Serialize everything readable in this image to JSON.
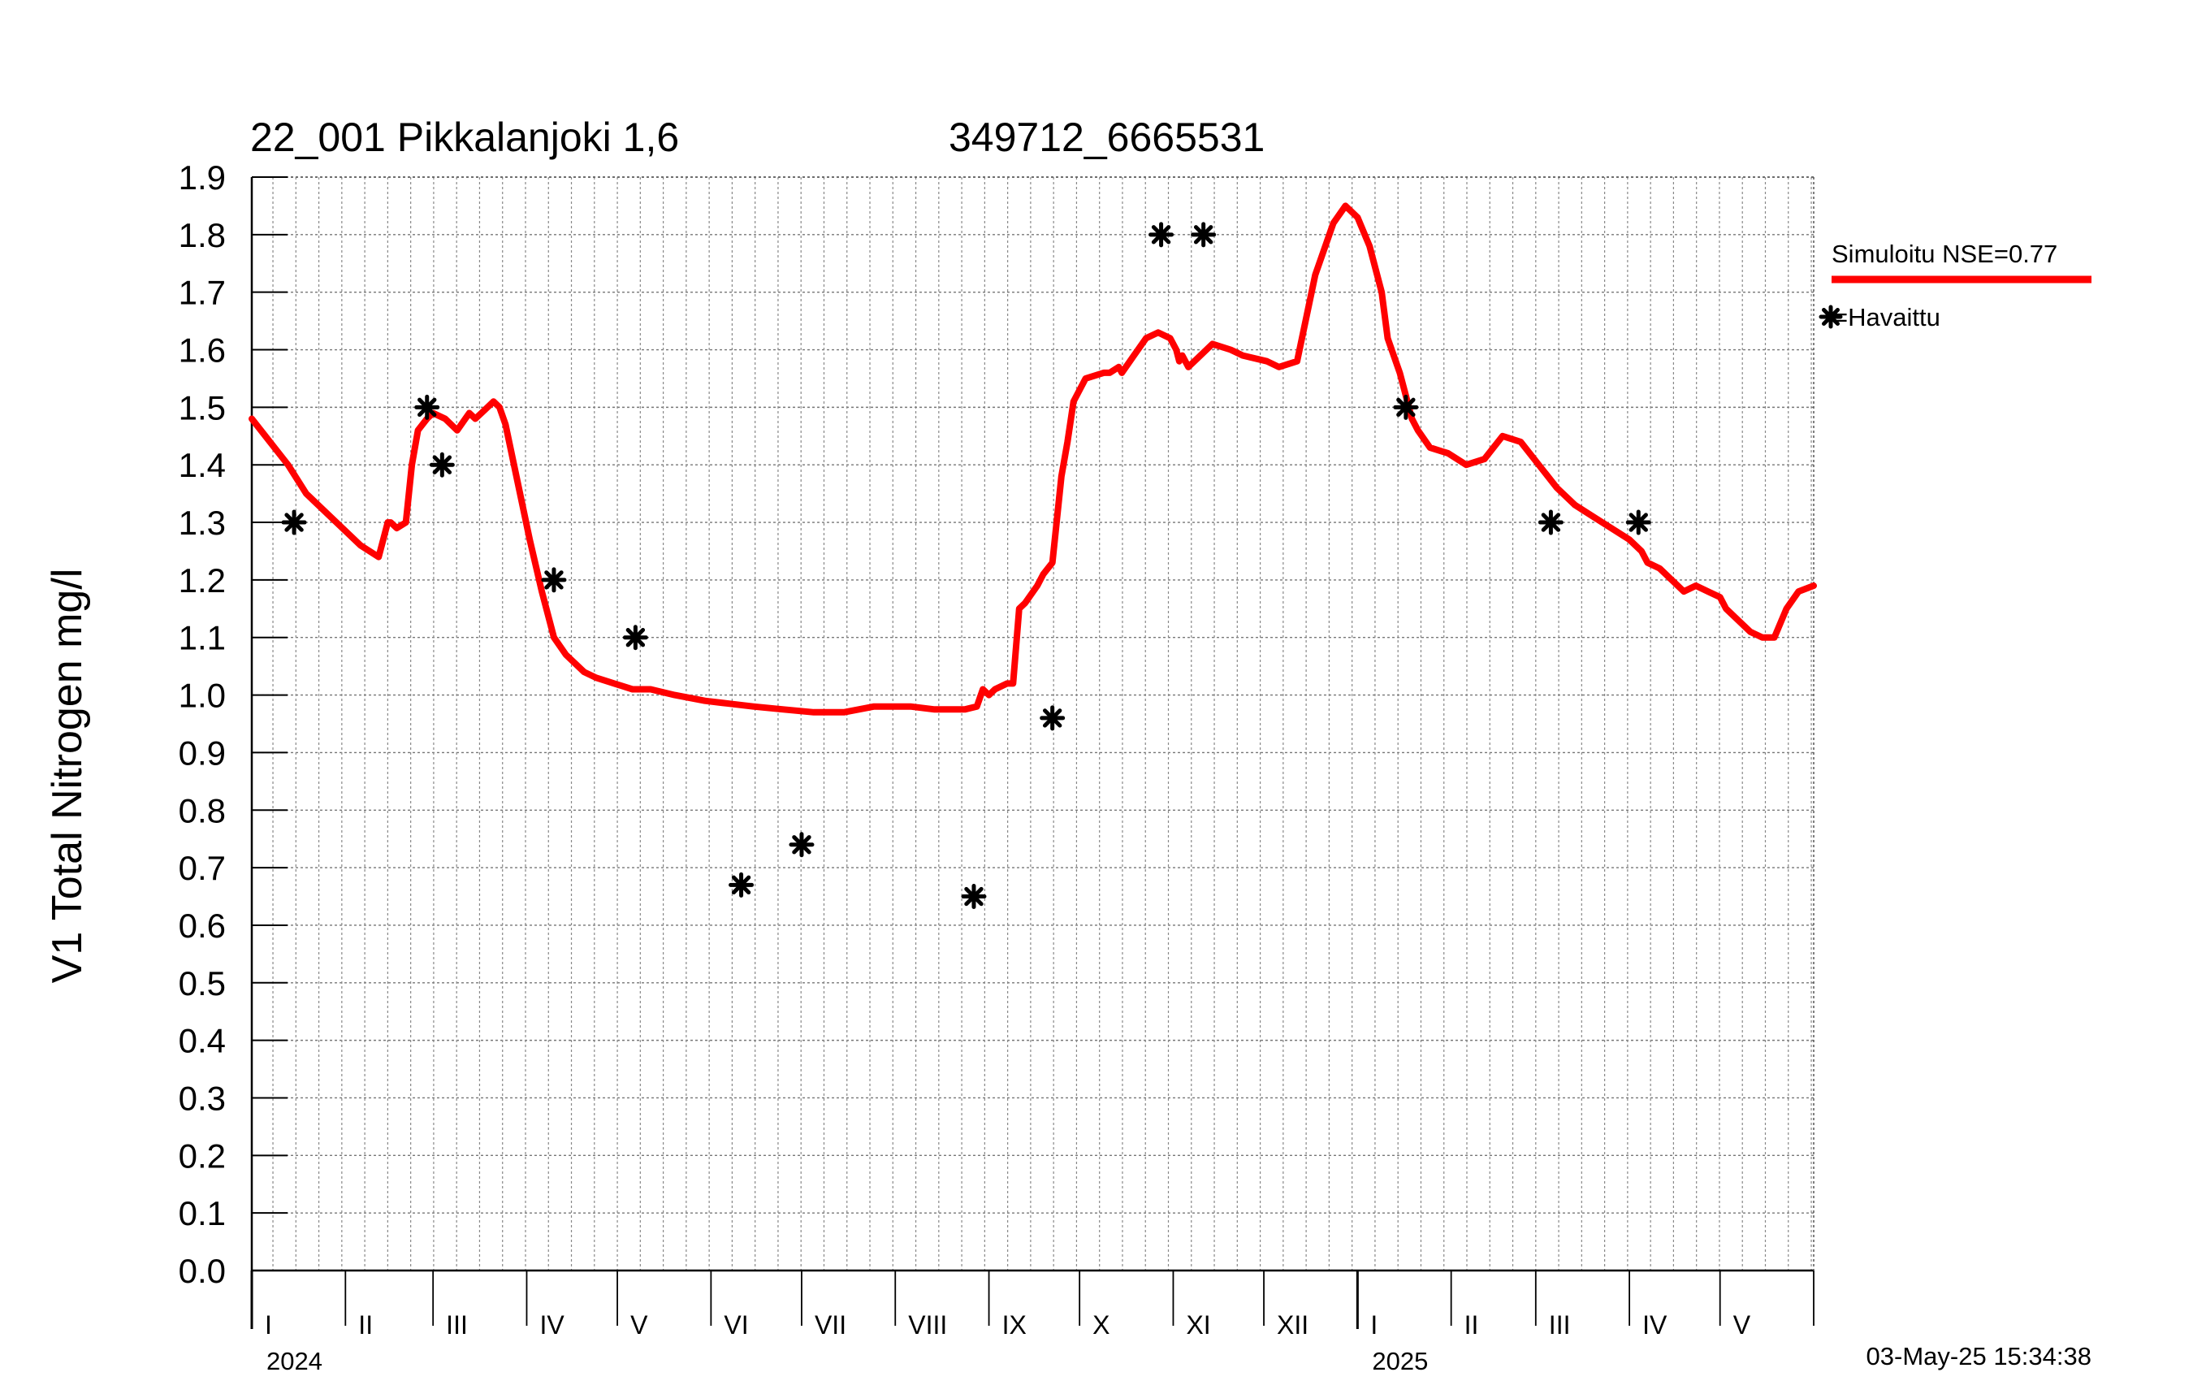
{
  "chart_data": {
    "type": "line",
    "title_left": "22_001 Pikkalanjoki 1,6",
    "title_right": "349712_6665531",
    "ylabel": "V1 Total Nitrogen mg/l",
    "ylim": [
      0.0,
      1.9
    ],
    "yticks": [
      "0.0",
      "0.1",
      "0.2",
      "0.3",
      "0.4",
      "0.5",
      "0.6",
      "0.7",
      "0.8",
      "0.9",
      "1.0",
      "1.1",
      "1.2",
      "1.3",
      "1.4",
      "1.5",
      "1.6",
      "1.7",
      "1.8",
      "1.9"
    ],
    "x_unit": "days since 2024-01-01",
    "xlim": [
      0,
      517
    ],
    "month_boundaries": [
      0,
      31,
      60,
      91,
      121,
      152,
      182,
      213,
      244,
      274,
      305,
      335,
      366,
      397,
      425,
      456,
      486,
      517
    ],
    "month_labels": [
      "I",
      "II",
      "III",
      "IV",
      "V",
      "VI",
      "VII",
      "VIII",
      "IX",
      "X",
      "XI",
      "XII",
      "I",
      "II",
      "III",
      "IV",
      "V"
    ],
    "year_labels": [
      {
        "label": "2024",
        "day": 0
      },
      {
        "label": "2025",
        "day": 366
      }
    ],
    "grid": true,
    "timestamp": "03-May-25 15:34:38",
    "series": [
      {
        "name": "Simuloitu NSE=0.77",
        "legend": "Simuloitu NSE=0.77",
        "color": "#ff0000",
        "x": [
          0,
          6,
          12,
          18,
          24,
          30,
          36,
          42,
          45,
          46,
          48,
          51,
          53,
          55,
          58,
          60,
          64,
          68,
          72,
          74,
          76,
          80,
          82,
          84,
          88,
          92,
          96,
          100,
          104,
          110,
          114,
          120,
          126,
          132,
          140,
          150,
          158,
          166,
          176,
          186,
          196,
          206,
          212,
          218,
          226,
          236,
          240,
          242,
          244,
          246,
          250,
          252,
          254,
          256,
          260,
          262,
          265,
          268,
          270,
          272,
          276,
          282,
          284,
          287,
          288,
          292,
          296,
          300,
          304,
          306,
          307,
          308,
          310,
          312,
          318,
          324,
          328,
          336,
          340,
          346,
          352,
          358,
          362,
          366,
          370,
          374,
          376,
          380,
          382,
          384,
          386,
          390,
          396,
          402,
          408,
          414,
          420,
          426,
          432,
          438,
          444,
          450,
          456,
          460,
          462,
          466,
          470,
          474,
          478,
          482,
          486,
          488,
          492,
          496,
          500,
          504,
          508,
          512,
          517
        ],
        "y": [
          1.48,
          1.44,
          1.4,
          1.35,
          1.32,
          1.29,
          1.26,
          1.24,
          1.3,
          1.3,
          1.29,
          1.3,
          1.4,
          1.46,
          1.48,
          1.49,
          1.48,
          1.46,
          1.49,
          1.48,
          1.49,
          1.51,
          1.5,
          1.47,
          1.37,
          1.27,
          1.18,
          1.1,
          1.07,
          1.04,
          1.03,
          1.02,
          1.01,
          1.01,
          1.0,
          0.99,
          0.985,
          0.98,
          0.975,
          0.97,
          0.97,
          0.98,
          0.98,
          0.98,
          0.975,
          0.975,
          0.98,
          1.01,
          1.0,
          1.01,
          1.02,
          1.02,
          1.15,
          1.16,
          1.19,
          1.21,
          1.23,
          1.38,
          1.44,
          1.51,
          1.55,
          1.56,
          1.56,
          1.57,
          1.56,
          1.59,
          1.62,
          1.63,
          1.62,
          1.6,
          1.58,
          1.59,
          1.57,
          1.58,
          1.61,
          1.6,
          1.59,
          1.58,
          1.57,
          1.58,
          1.73,
          1.82,
          1.85,
          1.83,
          1.78,
          1.7,
          1.62,
          1.56,
          1.52,
          1.48,
          1.46,
          1.43,
          1.42,
          1.4,
          1.41,
          1.45,
          1.44,
          1.4,
          1.36,
          1.33,
          1.31,
          1.29,
          1.27,
          1.25,
          1.23,
          1.22,
          1.2,
          1.18,
          1.19,
          1.18,
          1.17,
          1.15,
          1.13,
          1.11,
          1.1,
          1.1,
          1.15,
          1.18,
          1.19
        ]
      },
      {
        "name": "Havaittu",
        "legend": "=Havaittu",
        "marker": "asterisk",
        "x": [
          14,
          58,
          63,
          100,
          127,
          162,
          182,
          239,
          265,
          301,
          315,
          382,
          430,
          459
        ],
        "y": [
          1.3,
          1.5,
          1.4,
          1.2,
          1.1,
          0.67,
          0.74,
          0.65,
          0.96,
          1.8,
          1.8,
          1.5,
          1.3,
          1.3
        ]
      }
    ]
  }
}
